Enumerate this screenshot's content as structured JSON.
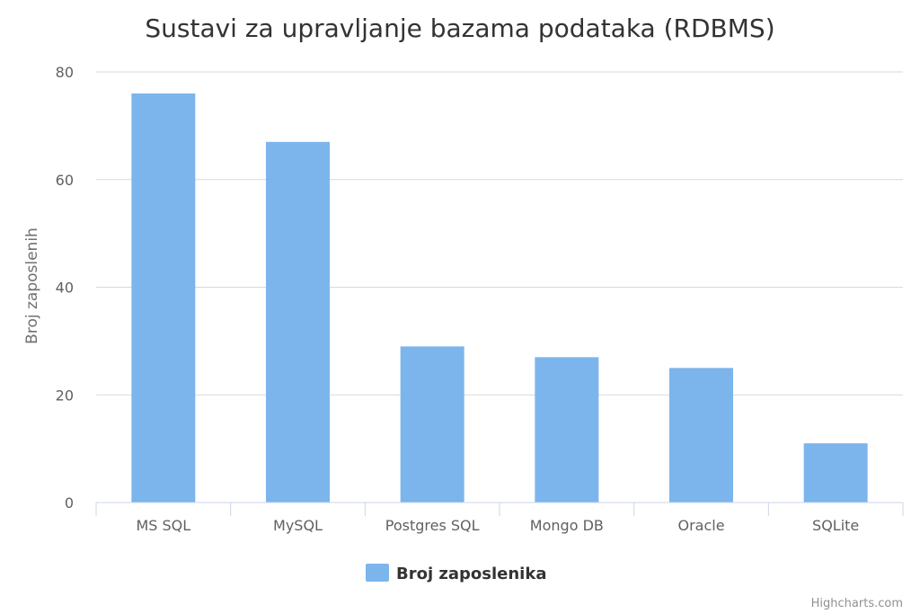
{
  "chart_data": {
    "type": "bar",
    "title": "Sustavi za upravljanje bazama podataka (RDBMS)",
    "xlabel": "",
    "ylabel": "Broj zaposlenih",
    "categories": [
      "MS SQL",
      "MySQL",
      "Postgres SQL",
      "Mongo DB",
      "Oracle",
      "SQLite"
    ],
    "series": [
      {
        "name": "Broj zaposlenika",
        "values": [
          76,
          67,
          29,
          27,
          25,
          11
        ],
        "color": "#7cb5ec"
      }
    ],
    "ylim": [
      0,
      80
    ],
    "yticks": [
      "0",
      "20",
      "40",
      "60",
      "80"
    ],
    "grid": true,
    "legend_position": "bottom-center"
  },
  "credits": "Highcharts.com",
  "colors": {
    "bar": "#7cb5ec",
    "grid": "#d8d8d8",
    "axis": "#ccd6eb"
  }
}
